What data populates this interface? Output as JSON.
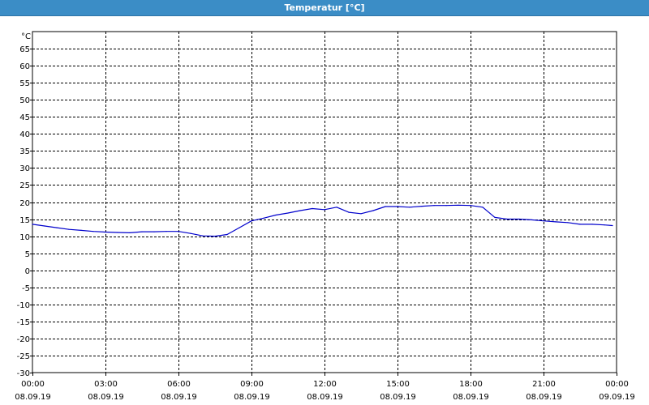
{
  "window": {
    "title": "Temperatur [°C]"
  },
  "colors": {
    "title_bar": "#3b8dc6",
    "series_line": "#0000cc",
    "grid": "#000000",
    "background": "#ffffff"
  },
  "chart_data": {
    "type": "line",
    "title": "Temperatur [°C]",
    "ylabel": "°C",
    "xlabel": "",
    "ylim": [
      -30,
      70
    ],
    "y_ticks": [
      65,
      60,
      55,
      50,
      45,
      40,
      35,
      30,
      25,
      20,
      15,
      10,
      5,
      0,
      -5,
      -10,
      -15,
      -20,
      -25,
      -30
    ],
    "xlim": [
      "08.09.19 00:00",
      "09.09.19 00:00"
    ],
    "x_ticks": [
      {
        "time": "00:00",
        "date": "08.09.19"
      },
      {
        "time": "03:00",
        "date": "08.09.19"
      },
      {
        "time": "06:00",
        "date": "08.09.19"
      },
      {
        "time": "09:00",
        "date": "08.09.19"
      },
      {
        "time": "12:00",
        "date": "08.09.19"
      },
      {
        "time": "15:00",
        "date": "08.09.19"
      },
      {
        "time": "18:00",
        "date": "08.09.19"
      },
      {
        "time": "21:00",
        "date": "08.09.19"
      },
      {
        "time": "00:00",
        "date": "09.09.19"
      }
    ],
    "grid": true,
    "grid_style": "dashed",
    "series": [
      {
        "x": [
          "00:00",
          "00:30",
          "01:00",
          "01:30",
          "02:00",
          "02:30",
          "03:00",
          "03:30",
          "04:00",
          "04:30",
          "05:00",
          "05:30",
          "06:00",
          "06:30",
          "07:00",
          "07:30",
          "08:00",
          "08:30",
          "09:00",
          "09:30",
          "10:00",
          "10:30",
          "11:00",
          "11:30",
          "12:00",
          "12:30",
          "13:00",
          "13:30",
          "14:00",
          "14:30",
          "15:00",
          "15:30",
          "16:00",
          "16:30",
          "17:00",
          "17:30",
          "18:00",
          "18:30",
          "19:00",
          "19:30",
          "20:00",
          "20:30",
          "21:00",
          "21:30",
          "22:00",
          "22:30",
          "23:00",
          "23:30",
          "23:50"
        ],
        "values": [
          13.5,
          13.0,
          12.5,
          12.0,
          11.7,
          11.4,
          11.2,
          11.1,
          11.0,
          11.3,
          11.3,
          11.4,
          11.4,
          10.8,
          10.1,
          10.0,
          10.5,
          12.5,
          14.5,
          15.3,
          16.2,
          16.8,
          17.5,
          18.1,
          17.8,
          18.5,
          17.0,
          16.6,
          17.5,
          18.7,
          18.7,
          18.5,
          18.8,
          19.0,
          19.0,
          19.1,
          19.0,
          18.5,
          15.5,
          15.0,
          15.0,
          14.8,
          14.5,
          14.2,
          14.0,
          13.5,
          13.5,
          13.3,
          13.1
        ]
      }
    ]
  }
}
